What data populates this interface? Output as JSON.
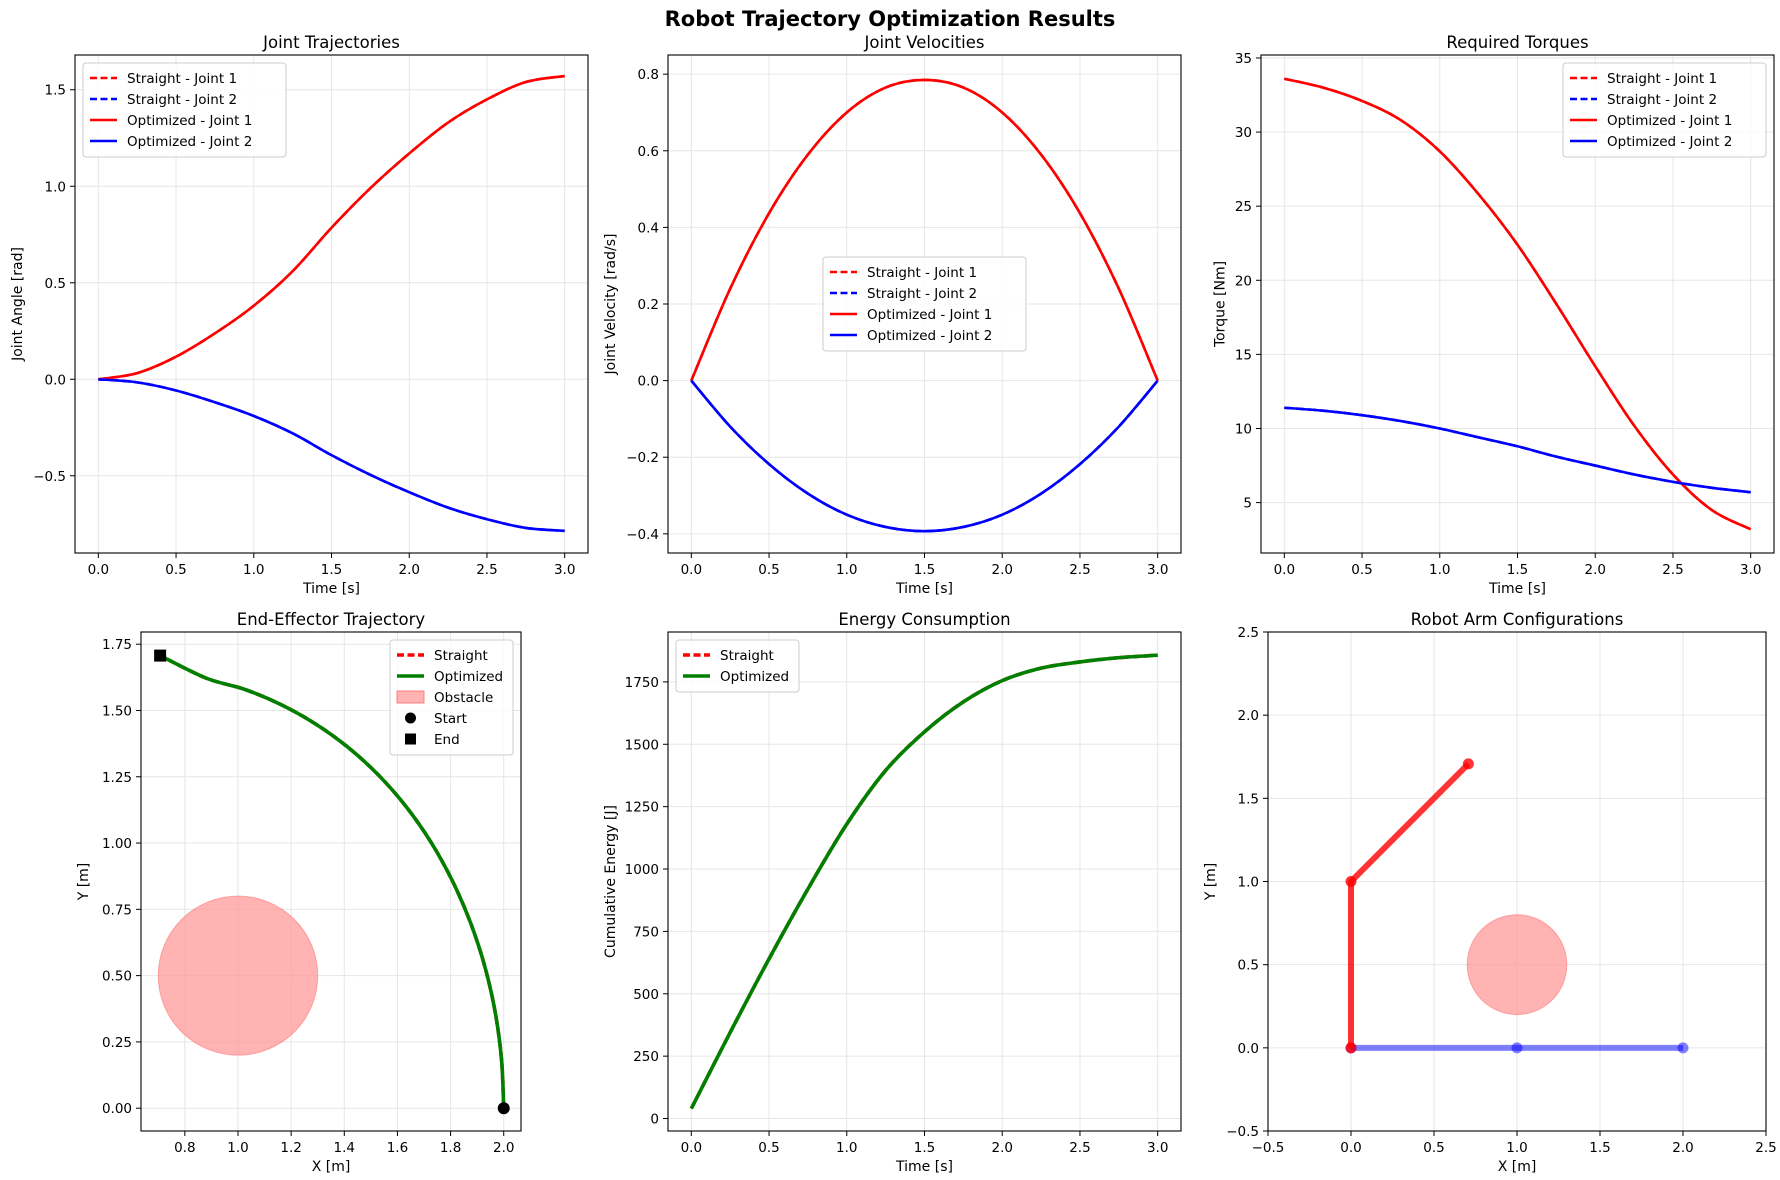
{
  "figure": {
    "suptitle": "Robot Trajectory Optimization Results",
    "colors": {
      "red": "#ff0000",
      "blue": "#0000ff",
      "green": "#008000",
      "obstacle": "#ff9999",
      "grid": "#e6e6e6"
    }
  },
  "chart_data": [
    {
      "id": "joint-trajectories",
      "type": "line",
      "title": "Joint Trajectories",
      "xlabel": "Time [s]",
      "ylabel": "Joint Angle [rad]",
      "xlim": [
        -0.15,
        3.15
      ],
      "ylim": [
        -0.9,
        1.68
      ],
      "xticks": [
        0.0,
        0.5,
        1.0,
        1.5,
        2.0,
        2.5,
        3.0
      ],
      "xtick_labels": [
        "0.0",
        "0.5",
        "1.0",
        "1.5",
        "2.0",
        "2.5",
        "3.0"
      ],
      "yticks": [
        -0.5,
        0.0,
        0.5,
        1.0,
        1.5
      ],
      "ytick_labels": [
        "−0.5",
        "0.0",
        "0.5",
        "1.0",
        "1.5"
      ],
      "grid": true,
      "legend_position": "upper-left",
      "x": [
        0.0,
        0.25,
        0.5,
        0.75,
        1.0,
        1.25,
        1.5,
        1.75,
        2.0,
        2.25,
        2.5,
        2.75,
        3.0
      ],
      "series": [
        {
          "name": "Straight - Joint 1",
          "style": "dashed",
          "color": "#ff0000",
          "values": [
            0.0,
            0.032,
            0.117,
            0.238,
            0.381,
            0.56,
            0.785,
            0.99,
            1.17,
            1.33,
            1.45,
            1.54,
            1.571
          ]
        },
        {
          "name": "Straight - Joint 2",
          "style": "dashed",
          "color": "#0000ff",
          "values": [
            0.0,
            -0.016,
            -0.058,
            -0.119,
            -0.19,
            -0.28,
            -0.393,
            -0.495,
            -0.585,
            -0.665,
            -0.725,
            -0.77,
            -0.785
          ]
        },
        {
          "name": "Optimized - Joint 1",
          "style": "solid",
          "color": "#ff0000",
          "values": [
            0.0,
            0.032,
            0.117,
            0.238,
            0.381,
            0.56,
            0.785,
            0.99,
            1.17,
            1.33,
            1.45,
            1.54,
            1.571
          ]
        },
        {
          "name": "Optimized - Joint 2",
          "style": "solid",
          "color": "#0000ff",
          "values": [
            0.0,
            -0.016,
            -0.058,
            -0.119,
            -0.19,
            -0.28,
            -0.393,
            -0.495,
            -0.585,
            -0.665,
            -0.725,
            -0.77,
            -0.785
          ]
        }
      ]
    },
    {
      "id": "joint-velocities",
      "type": "line",
      "title": "Joint Velocities",
      "xlabel": "Time [s]",
      "ylabel": "Joint Velocity [rad/s]",
      "xlim": [
        -0.15,
        3.15
      ],
      "ylim": [
        -0.45,
        0.85
      ],
      "xticks": [
        0.0,
        0.5,
        1.0,
        1.5,
        2.0,
        2.5,
        3.0
      ],
      "xtick_labels": [
        "0.0",
        "0.5",
        "1.0",
        "1.5",
        "2.0",
        "2.5",
        "3.0"
      ],
      "yticks": [
        -0.4,
        -0.2,
        0.0,
        0.2,
        0.4,
        0.6,
        0.8
      ],
      "ytick_labels": [
        "−0.4",
        "−0.2",
        "0.0",
        "0.2",
        "0.4",
        "0.6",
        "0.8"
      ],
      "grid": true,
      "legend_position": "center",
      "x": [
        0.0,
        0.25,
        0.5,
        0.75,
        1.0,
        1.25,
        1.5,
        1.75,
        2.0,
        2.25,
        2.5,
        2.75,
        3.0
      ],
      "series": [
        {
          "name": "Straight - Joint 1",
          "style": "dashed",
          "color": "#ff0000",
          "values": [
            0.0,
            0.24,
            0.437,
            0.59,
            0.7,
            0.765,
            0.785,
            0.765,
            0.7,
            0.59,
            0.437,
            0.24,
            0.0
          ]
        },
        {
          "name": "Straight - Joint 2",
          "style": "dashed",
          "color": "#0000ff",
          "values": [
            0.0,
            -0.12,
            -0.218,
            -0.295,
            -0.35,
            -0.382,
            -0.393,
            -0.382,
            -0.35,
            -0.295,
            -0.218,
            -0.12,
            0.0
          ]
        },
        {
          "name": "Optimized - Joint 1",
          "style": "solid",
          "color": "#ff0000",
          "values": [
            0.0,
            0.24,
            0.437,
            0.59,
            0.7,
            0.765,
            0.785,
            0.765,
            0.7,
            0.59,
            0.437,
            0.24,
            0.0
          ]
        },
        {
          "name": "Optimized - Joint 2",
          "style": "solid",
          "color": "#0000ff",
          "values": [
            0.0,
            -0.12,
            -0.218,
            -0.295,
            -0.35,
            -0.382,
            -0.393,
            -0.382,
            -0.35,
            -0.295,
            -0.218,
            -0.12,
            0.0
          ]
        }
      ]
    },
    {
      "id": "required-torques",
      "type": "line",
      "title": "Required Torques",
      "xlabel": "Time [s]",
      "ylabel": "Torque [Nm]",
      "xlim": [
        -0.15,
        3.15
      ],
      "ylim": [
        1.6,
        35.2
      ],
      "xticks": [
        0.0,
        0.5,
        1.0,
        1.5,
        2.0,
        2.5,
        3.0
      ],
      "xtick_labels": [
        "0.0",
        "0.5",
        "1.0",
        "1.5",
        "2.0",
        "2.5",
        "3.0"
      ],
      "yticks": [
        5,
        10,
        15,
        20,
        25,
        30,
        35
      ],
      "ytick_labels": [
        "5",
        "10",
        "15",
        "20",
        "25",
        "30",
        "35"
      ],
      "grid": true,
      "legend_position": "upper-right",
      "x": [
        0.0,
        0.25,
        0.5,
        0.75,
        1.0,
        1.25,
        1.5,
        1.75,
        2.0,
        2.25,
        2.5,
        2.75,
        3.0
      ],
      "series": [
        {
          "name": "Straight - Joint 1",
          "style": "dashed",
          "color": "#ff0000",
          "values": [
            33.6,
            33.0,
            32.1,
            30.8,
            28.7,
            25.8,
            22.4,
            18.4,
            14.2,
            10.2,
            6.9,
            4.5,
            3.2
          ]
        },
        {
          "name": "Straight - Joint 2",
          "style": "dashed",
          "color": "#0000ff",
          "values": [
            11.4,
            11.2,
            10.9,
            10.5,
            10.0,
            9.4,
            8.8,
            8.1,
            7.5,
            6.9,
            6.4,
            6.0,
            5.7
          ]
        },
        {
          "name": "Optimized - Joint 1",
          "style": "solid",
          "color": "#ff0000",
          "values": [
            33.6,
            33.0,
            32.1,
            30.8,
            28.7,
            25.8,
            22.4,
            18.4,
            14.2,
            10.2,
            6.9,
            4.5,
            3.2
          ]
        },
        {
          "name": "Optimized - Joint 2",
          "style": "solid",
          "color": "#0000ff",
          "values": [
            11.4,
            11.2,
            10.9,
            10.5,
            10.0,
            9.4,
            8.8,
            8.1,
            7.5,
            6.9,
            6.4,
            6.0,
            5.7
          ]
        }
      ]
    },
    {
      "id": "end-effector-trajectory",
      "type": "line",
      "title": "End-Effector Trajectory",
      "xlabel": "X [m]",
      "ylabel": "Y [m]",
      "xlim": [
        0.635,
        2.065
      ],
      "ylim": [
        -0.086,
        1.796
      ],
      "xticks": [
        0.8,
        1.0,
        1.2,
        1.4,
        1.6,
        1.8,
        2.0
      ],
      "xtick_labels": [
        "0.8",
        "1.0",
        "1.2",
        "1.4",
        "1.6",
        "1.8",
        "2.0"
      ],
      "yticks": [
        0.0,
        0.25,
        0.5,
        0.75,
        1.0,
        1.25,
        1.5,
        1.75
      ],
      "ytick_labels": [
        "0.00",
        "0.25",
        "0.50",
        "0.75",
        "1.00",
        "1.25",
        "1.50",
        "1.75"
      ],
      "grid": true,
      "legend_position": "upper-right",
      "series": [
        {
          "name": "Straight",
          "style": "dashed",
          "color": "#ff0000",
          "x": [
            2.0,
            1.992,
            1.969,
            1.93,
            1.876,
            1.808,
            1.727,
            1.633,
            1.528,
            1.413,
            1.289,
            1.158,
            1.021,
            0.88,
            0.707
          ],
          "y": [
            0.0,
            0.179,
            0.356,
            0.53,
            0.697,
            0.855,
            1.002,
            1.137,
            1.257,
            1.362,
            1.451,
            1.524,
            1.581,
            1.622,
            1.707
          ]
        },
        {
          "name": "Optimized",
          "style": "solid",
          "color": "#008000",
          "x": [
            2.0,
            1.992,
            1.969,
            1.93,
            1.876,
            1.808,
            1.727,
            1.633,
            1.528,
            1.413,
            1.289,
            1.158,
            1.021,
            0.88,
            0.707
          ],
          "y": [
            0.0,
            0.179,
            0.356,
            0.53,
            0.697,
            0.855,
            1.002,
            1.137,
            1.257,
            1.362,
            1.451,
            1.524,
            1.581,
            1.622,
            1.707
          ]
        }
      ],
      "obstacle": {
        "name": "Obstacle",
        "center": [
          1.0,
          0.5
        ],
        "radius": 0.3,
        "color": "#ff9999"
      },
      "markers": [
        {
          "name": "Start",
          "shape": "circle",
          "x": 2.0,
          "y": 0.0
        },
        {
          "name": "End",
          "shape": "square",
          "x": 0.707,
          "y": 1.707
        }
      ]
    },
    {
      "id": "energy-consumption",
      "type": "line",
      "title": "Energy Consumption",
      "xlabel": "Time [s]",
      "ylabel": "Cumulative Energy [J]",
      "xlim": [
        -0.15,
        3.15
      ],
      "ylim": [
        -50,
        1950
      ],
      "xticks": [
        0.0,
        0.5,
        1.0,
        1.5,
        2.0,
        2.5,
        3.0
      ],
      "xtick_labels": [
        "0.0",
        "0.5",
        "1.0",
        "1.5",
        "2.0",
        "2.5",
        "3.0"
      ],
      "yticks": [
        0,
        250,
        500,
        750,
        1000,
        1250,
        1500,
        1750
      ],
      "ytick_labels": [
        "0",
        "250",
        "500",
        "750",
        "1000",
        "1250",
        "1500",
        "1750"
      ],
      "grid": true,
      "legend_position": "upper-left",
      "x": [
        0.0,
        0.25,
        0.5,
        0.75,
        1.0,
        1.25,
        1.5,
        1.75,
        2.0,
        2.25,
        2.5,
        2.75,
        3.0
      ],
      "series": [
        {
          "name": "Straight",
          "style": "dashed",
          "color": "#ff0000",
          "values": [
            40,
            345,
            640,
            920,
            1180,
            1395,
            1550,
            1670,
            1755,
            1805,
            1830,
            1847,
            1857
          ]
        },
        {
          "name": "Optimized",
          "style": "solid",
          "color": "#008000",
          "values": [
            40,
            345,
            640,
            920,
            1180,
            1395,
            1550,
            1670,
            1755,
            1805,
            1830,
            1847,
            1857
          ]
        }
      ]
    },
    {
      "id": "robot-arm-configurations",
      "type": "line",
      "title": "Robot Arm Configurations",
      "xlabel": "X [m]",
      "ylabel": "Y [m]",
      "xlim": [
        -0.5,
        2.5
      ],
      "ylim": [
        -0.5,
        2.5
      ],
      "xticks": [
        -0.5,
        0.0,
        0.5,
        1.0,
        1.5,
        2.0,
        2.5
      ],
      "xtick_labels": [
        "−0.5",
        "0.0",
        "0.5",
        "1.0",
        "1.5",
        "2.0",
        "2.5"
      ],
      "yticks": [
        -0.5,
        0.0,
        0.5,
        1.0,
        1.5,
        2.0,
        2.5
      ],
      "ytick_labels": [
        "−0.5",
        "0.0",
        "0.5",
        "1.0",
        "1.5",
        "2.0",
        "2.5"
      ],
      "grid": true,
      "arms": [
        {
          "color": "#0000ff",
          "opacity": 0.5,
          "x": [
            0.0,
            1.0,
            2.0
          ],
          "y": [
            0.0,
            0.0,
            0.0
          ]
        },
        {
          "color": "#ff0000",
          "opacity": 0.8,
          "x": [
            0.0,
            0.0,
            0.707
          ],
          "y": [
            0.0,
            1.0,
            1.707
          ]
        }
      ],
      "obstacle": {
        "center": [
          1.0,
          0.5
        ],
        "radius": 0.3,
        "color": "#ff9999"
      }
    }
  ]
}
